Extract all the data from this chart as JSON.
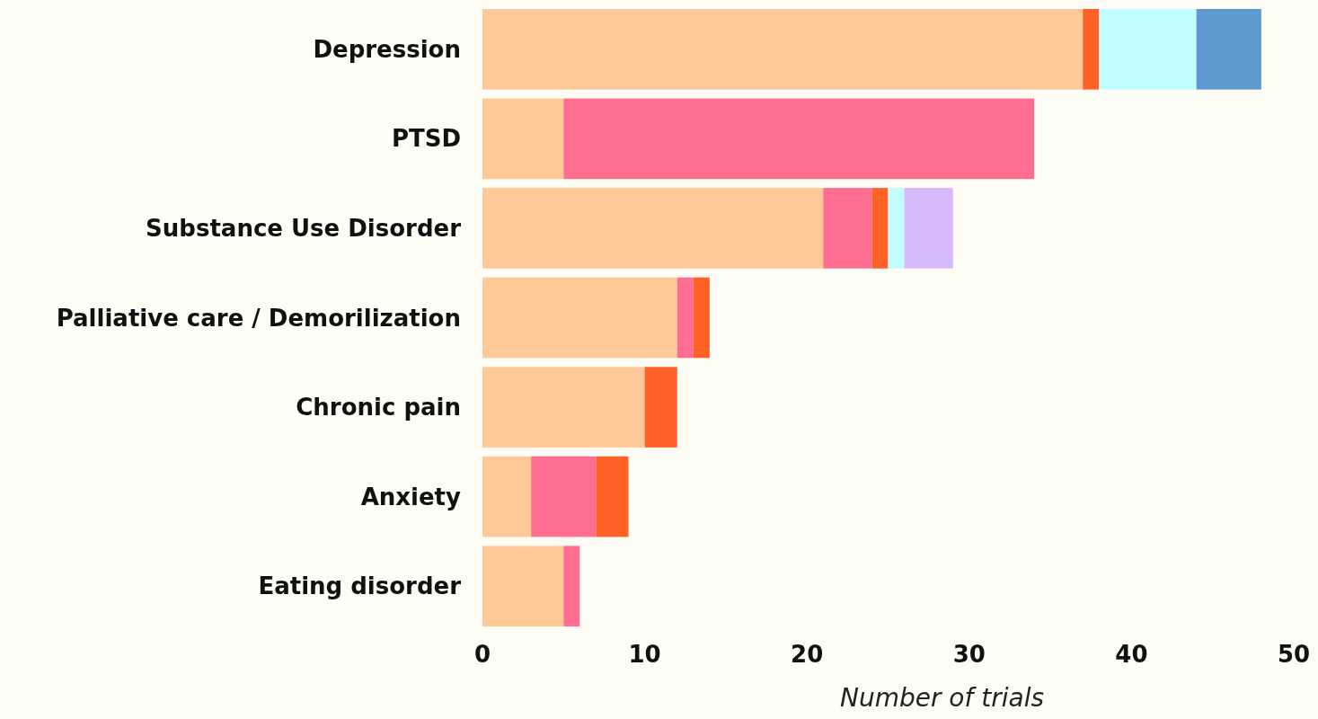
{
  "chart_data": {
    "type": "bar",
    "orientation": "horizontal",
    "stacked": true,
    "xlabel": "Number of trials",
    "categories": [
      "Depression",
      "PTSD",
      "Substance Use Disorder",
      "Palliative care / Demorilization",
      "Chronic pain",
      "Anxiety",
      "Eating disorder"
    ],
    "series": [
      {
        "color": "#ffc898",
        "values": [
          37,
          5,
          21,
          12,
          10,
          3,
          5
        ]
      },
      {
        "color": "#ff6e91",
        "values": [
          null,
          29,
          3,
          1,
          null,
          4,
          1
        ]
      },
      {
        "color": "#ff6126",
        "values": [
          1,
          null,
          1,
          1,
          2,
          2,
          null
        ]
      },
      {
        "color": "#c1fdff",
        "values": [
          6,
          null,
          1,
          null,
          null,
          null,
          null
        ]
      },
      {
        "color": "#d6b9fa",
        "values": [
          null,
          null,
          3,
          null,
          null,
          null,
          null
        ]
      },
      {
        "color": "#5e9ad0",
        "values": [
          4,
          null,
          null,
          null,
          null,
          null,
          null
        ]
      }
    ],
    "xlim": [
      0,
      50
    ],
    "xticks": [
      0,
      10,
      20,
      30,
      40,
      50
    ],
    "grid": false
  }
}
